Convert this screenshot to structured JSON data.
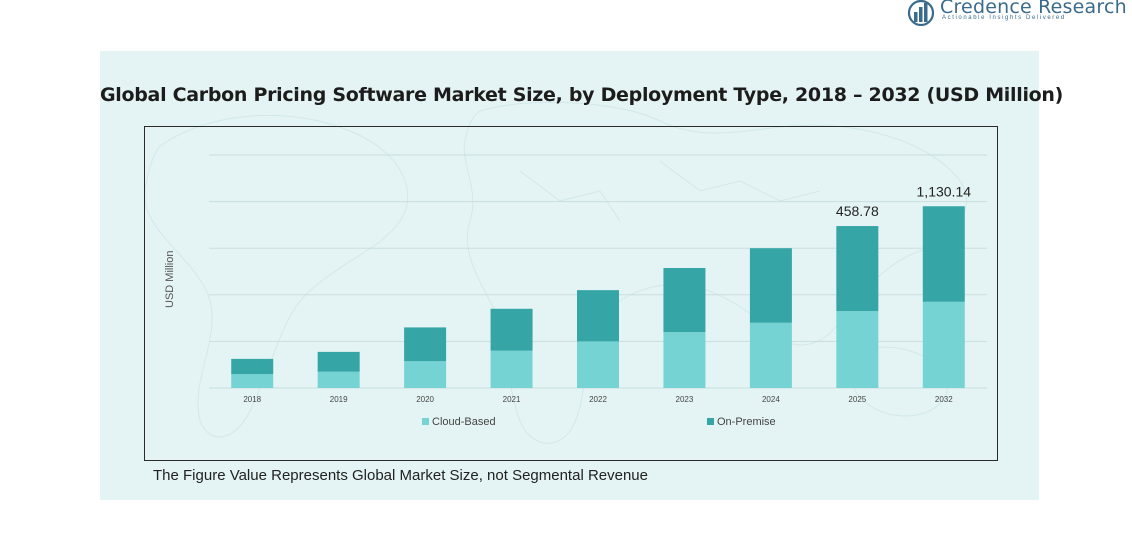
{
  "brand": {
    "name": "Credence Research",
    "tagline": "Actionable Insights Delivered",
    "color": "#3a6b8c"
  },
  "footnote": "The Figure Value Represents Global Market Size, not Segmental Revenue",
  "colors": {
    "panel": "#e4f4f4",
    "cloud": "#76d3d3",
    "onprem": "#35a5a5",
    "grid": "#c9dede"
  },
  "chart_data": {
    "type": "bar",
    "stacked": true,
    "title": "Global Carbon Pricing Software Market Size, by Deployment Type, 2018 – 2032 (USD Million)",
    "xlabel": "",
    "ylabel": "USD Million",
    "categories": [
      "2018",
      "2019",
      "2020",
      "2021",
      "2022",
      "2023",
      "2024",
      "2025",
      "2032"
    ],
    "series": [
      {
        "name": "Cloud-Based",
        "color": "#76d3d3",
        "values": [
          0.06,
          0.07,
          0.115,
          0.16,
          0.2,
          0.24,
          0.28,
          0.33,
          0.37
        ]
      },
      {
        "name": "On-Premise",
        "color": "#35a5a5",
        "values": [
          0.065,
          0.085,
          0.145,
          0.18,
          0.22,
          0.275,
          0.32,
          0.365,
          0.41
        ]
      }
    ],
    "data_labels": [
      {
        "category": "2025",
        "text": "458.78"
      },
      {
        "category": "2032",
        "text": "1,130.14"
      }
    ],
    "ylim": [
      0,
      1
    ],
    "y_axis_ticks_shown": false,
    "grid": true,
    "legend": "bottom"
  }
}
